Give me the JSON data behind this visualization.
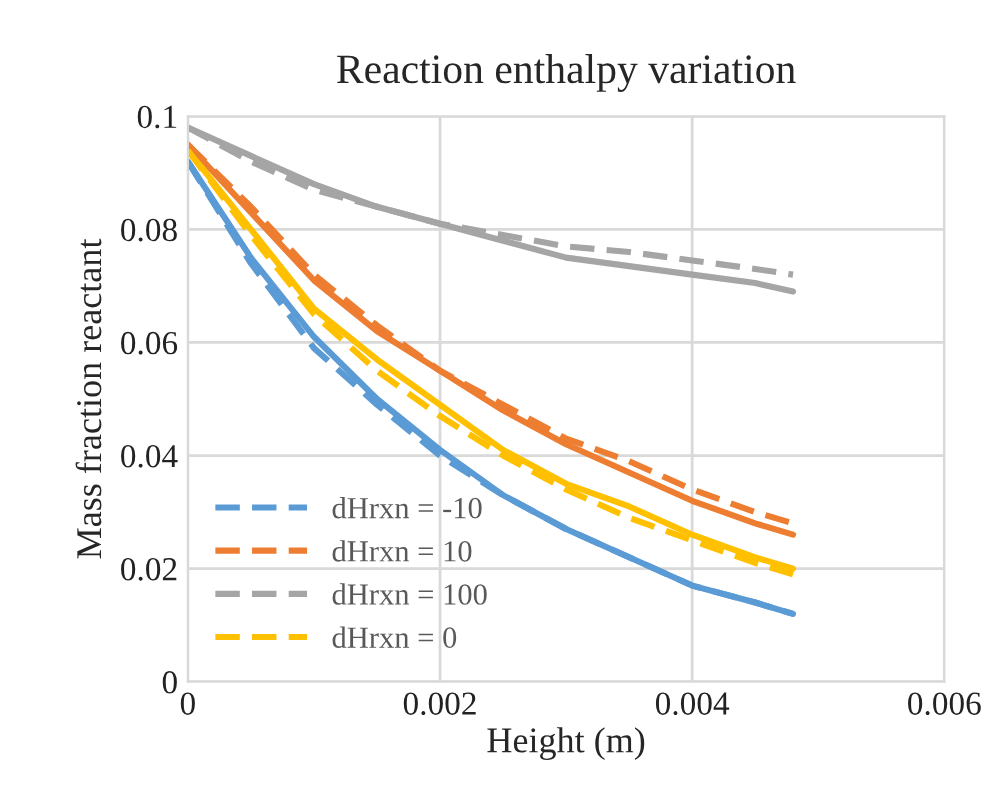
{
  "chart_data": {
    "type": "line",
    "title": "Reaction enthalpy variation",
    "xlabel": "Height (m)",
    "ylabel": "Mass fraction reactant",
    "x": [
      0,
      0.0005,
      0.001,
      0.0015,
      0.002,
      0.0025,
      0.003,
      0.0035,
      0.004,
      0.0045,
      0.0048
    ],
    "series": [
      {
        "color": "#5b9bd5",
        "line_style": "solid",
        "values": [
          0.092,
          0.075,
          0.061,
          0.05,
          0.041,
          0.033,
          0.027,
          0.022,
          0.017,
          0.014,
          0.012
        ]
      },
      {
        "color": "#ed7d31",
        "line_style": "solid",
        "values": [
          0.095,
          0.083,
          0.071,
          0.062,
          0.055,
          0.048,
          0.042,
          0.037,
          0.032,
          0.028,
          0.026
        ]
      },
      {
        "color": "#a5a5a5",
        "line_style": "solid",
        "values": [
          0.098,
          0.093,
          0.088,
          0.084,
          0.081,
          0.078,
          0.075,
          0.0735,
          0.072,
          0.0705,
          0.069
        ]
      },
      {
        "color": "#ffc000",
        "line_style": "solid",
        "values": [
          0.094,
          0.08,
          0.066,
          0.057,
          0.049,
          0.041,
          0.035,
          0.031,
          0.026,
          0.022,
          0.02
        ]
      },
      {
        "name": "dHrxn = -10",
        "color": "#5b9bd5",
        "line_style": "dashed",
        "values": [
          0.092,
          0.074,
          0.059,
          0.049,
          0.04,
          0.033,
          0.027,
          0.022,
          0.017,
          0.014,
          0.012
        ]
      },
      {
        "name": "dHrxn = 10",
        "color": "#ed7d31",
        "line_style": "dashed",
        "values": [
          0.095,
          0.084,
          0.072,
          0.063,
          0.055,
          0.049,
          0.043,
          0.039,
          0.034,
          0.03,
          0.028
        ]
      },
      {
        "name": "dHrxn = 100",
        "color": "#a5a5a5",
        "line_style": "dashed",
        "values": [
          0.098,
          0.092,
          0.087,
          0.084,
          0.081,
          0.079,
          0.077,
          0.076,
          0.0745,
          0.073,
          0.072
        ]
      },
      {
        "name": "dHrxn = 0",
        "color": "#ffc000",
        "line_style": "dashed",
        "values": [
          0.094,
          0.079,
          0.065,
          0.055,
          0.047,
          0.04,
          0.034,
          0.029,
          0.025,
          0.021,
          0.019
        ]
      }
    ],
    "xlim": [
      0,
      0.006
    ],
    "xticks": [
      0,
      0.002,
      0.004,
      0.006
    ],
    "ylim": [
      0,
      0.1
    ],
    "yticks": [
      0,
      0.02,
      0.04,
      0.06,
      0.08,
      0.1
    ],
    "grid": true,
    "legend": "bottom left",
    "marker": "none"
  }
}
